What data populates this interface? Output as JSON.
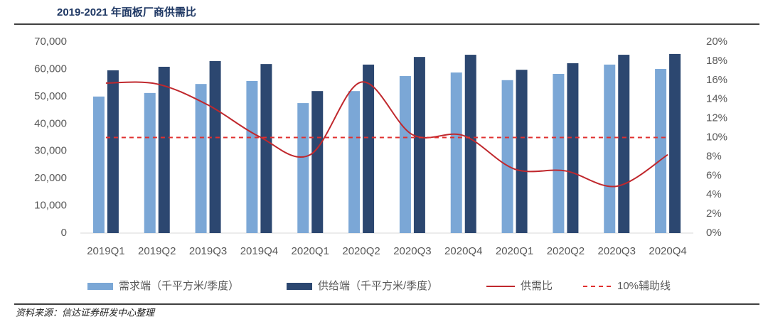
{
  "title": "2019-2021 年面板厂商供需比",
  "source": "资料来源：信达证券研发中心整理",
  "chart_data": {
    "type": "bar",
    "categories": [
      "2019Q1",
      "2019Q2",
      "2019Q3",
      "2019Q4",
      "2020Q1",
      "2020Q2",
      "2020Q3",
      "2020Q4",
      "2020Q1",
      "2020Q2",
      "2020Q3",
      "2020Q4"
    ],
    "series": [
      {
        "name": "需求端（千平方米/季度）",
        "type": "bar",
        "color": "#7ba7d6",
        "values": [
          50000,
          51300,
          54600,
          55700,
          47600,
          52000,
          57500,
          58800,
          56000,
          58300,
          61700,
          60100
        ]
      },
      {
        "name": "供给端（千平方米/季度）",
        "type": "bar",
        "color": "#2c4770",
        "values": [
          59600,
          60900,
          63000,
          61900,
          52000,
          61700,
          64500,
          65300,
          59800,
          62200,
          65300,
          65600
        ]
      },
      {
        "name": "供需比",
        "type": "line",
        "axis": "y2",
        "smooth": true,
        "color": "#c0282d",
        "values": [
          15.7,
          15.6,
          13.4,
          10.1,
          8.2,
          15.8,
          10.3,
          10.2,
          6.7,
          6.5,
          4.9,
          8.2
        ]
      },
      {
        "name": "10%辅助线",
        "type": "line",
        "axis": "y2",
        "dashed": true,
        "color": "#e0302f",
        "values": [
          10,
          10,
          10,
          10,
          10,
          10,
          10,
          10,
          10,
          10,
          10,
          10
        ]
      }
    ],
    "ylim": [
      0,
      70000
    ],
    "yticks": [
      0,
      {
        "value": 10000,
        "label": "10,000"
      },
      {
        "value": 20000,
        "label": "20,000"
      },
      {
        "value": 30000,
        "label": "30,000"
      },
      {
        "value": 40000,
        "label": "40,000"
      },
      {
        "value": 50000,
        "label": "50,000"
      },
      {
        "value": 60000,
        "label": "60,000"
      },
      {
        "value": 70000,
        "label": "70,000"
      }
    ],
    "y2lim": [
      0,
      20
    ],
    "y2ticks": [
      {
        "value": 0,
        "label": "0%"
      },
      {
        "value": 2,
        "label": "2%"
      },
      {
        "value": 4,
        "label": "4%"
      },
      {
        "value": 6,
        "label": "6%"
      },
      {
        "value": 8,
        "label": "8%"
      },
      {
        "value": 10,
        "label": "10%"
      },
      {
        "value": 12,
        "label": "12%"
      },
      {
        "value": 14,
        "label": "14%"
      },
      {
        "value": 16,
        "label": "16%"
      },
      {
        "value": 18,
        "label": "18%"
      },
      {
        "value": 20,
        "label": "20%"
      }
    ]
  }
}
